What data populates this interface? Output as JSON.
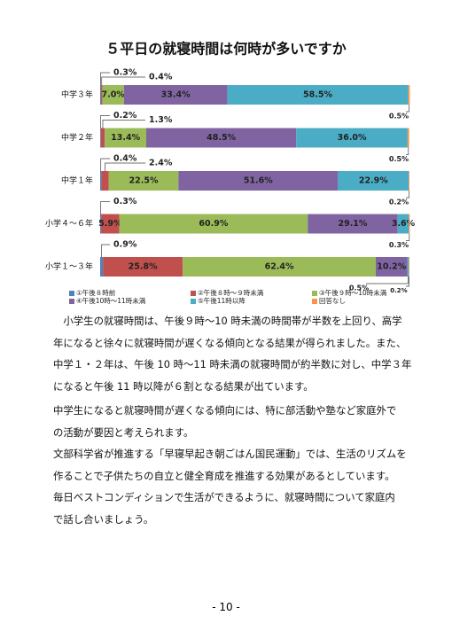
{
  "chart_data": {
    "type": "stacked-bar-horizontal",
    "title": "５平日の就寝時間は何時が多いですか",
    "categories": [
      "中学３年",
      "中学２年",
      "中学１年",
      "小学４～６年",
      "小学１～３年"
    ],
    "xlim": [
      0,
      100
    ],
    "legend": "bottom",
    "series": [
      {
        "name": "①午後８時前",
        "color": "#4f81bd",
        "values": [
          0.3,
          0.2,
          0.4,
          0.3,
          0.9
        ],
        "value_labels": [
          "0.3%",
          "0.2%",
          "0.4%",
          "0.3%",
          "0.9%"
        ]
      },
      {
        "name": "②午後８時～９時未満",
        "color": "#c0504d",
        "values": [
          0.4,
          1.3,
          2.4,
          5.9,
          25.8
        ],
        "value_labels": [
          "0.4%",
          "1.3%",
          "2.4%",
          "5.9%",
          "25.8%"
        ]
      },
      {
        "name": "③午後９時～10時未満",
        "color": "#9bbb59",
        "values": [
          7.0,
          13.4,
          22.5,
          60.9,
          62.4
        ],
        "value_labels": [
          "7.0%",
          "13.4%",
          "22.5%",
          "60.9%",
          "62.4%"
        ]
      },
      {
        "name": "④午後10時～11時未満",
        "color": "#8064a2",
        "values": [
          33.4,
          48.5,
          51.6,
          29.1,
          10.2
        ],
        "value_labels": [
          "33.4%",
          "48.5%",
          "51.6%",
          "29.1%",
          "10.2%"
        ]
      },
      {
        "name": "⑤午後11時以降",
        "color": "#4bacc6",
        "values": [
          58.5,
          36.0,
          22.9,
          3.6,
          0.5
        ],
        "value_labels": [
          "58.5%",
          "36.0%",
          "22.9%",
          "3.6%",
          "0.5%"
        ]
      },
      {
        "name": "回答なし",
        "color": "#f79646",
        "values": [
          0.5,
          0.5,
          0.2,
          0.3,
          0.2
        ],
        "value_labels": [
          "0.5%",
          "0.5%",
          "0.2%",
          "0.3%",
          "0.2%"
        ]
      }
    ]
  },
  "body": {
    "lines": [
      "　小学生の就寝時間は、午後９時～10 時未満の時間帯が半数を上回り、高学",
      "年になると徐々に就寝時間が遅くなる傾向となる結果が得られました。また、",
      "中学１・２年は、午後 10 時～11 時未満の就寝時間が約半数に対し、中学３年",
      "になると午後 11 時以降が６割となる結果が出ています。",
      "中学生になると就寝時間が遅くなる傾向には、特に部活動や塾など家庭外で",
      "の活動が要因と考えられます。",
      "文部科学省が推進する「早寝早起き朝ごはん国民運動」では、生活のリズムを",
      "作ることで子供たちの自立と健全育成を推進する効果があるとしています。",
      "毎日ベストコンディションで生活ができるように、就寝時間について家庭内",
      "で話し合いましょう。"
    ]
  },
  "footer": {
    "page_number": "- 10 -"
  }
}
